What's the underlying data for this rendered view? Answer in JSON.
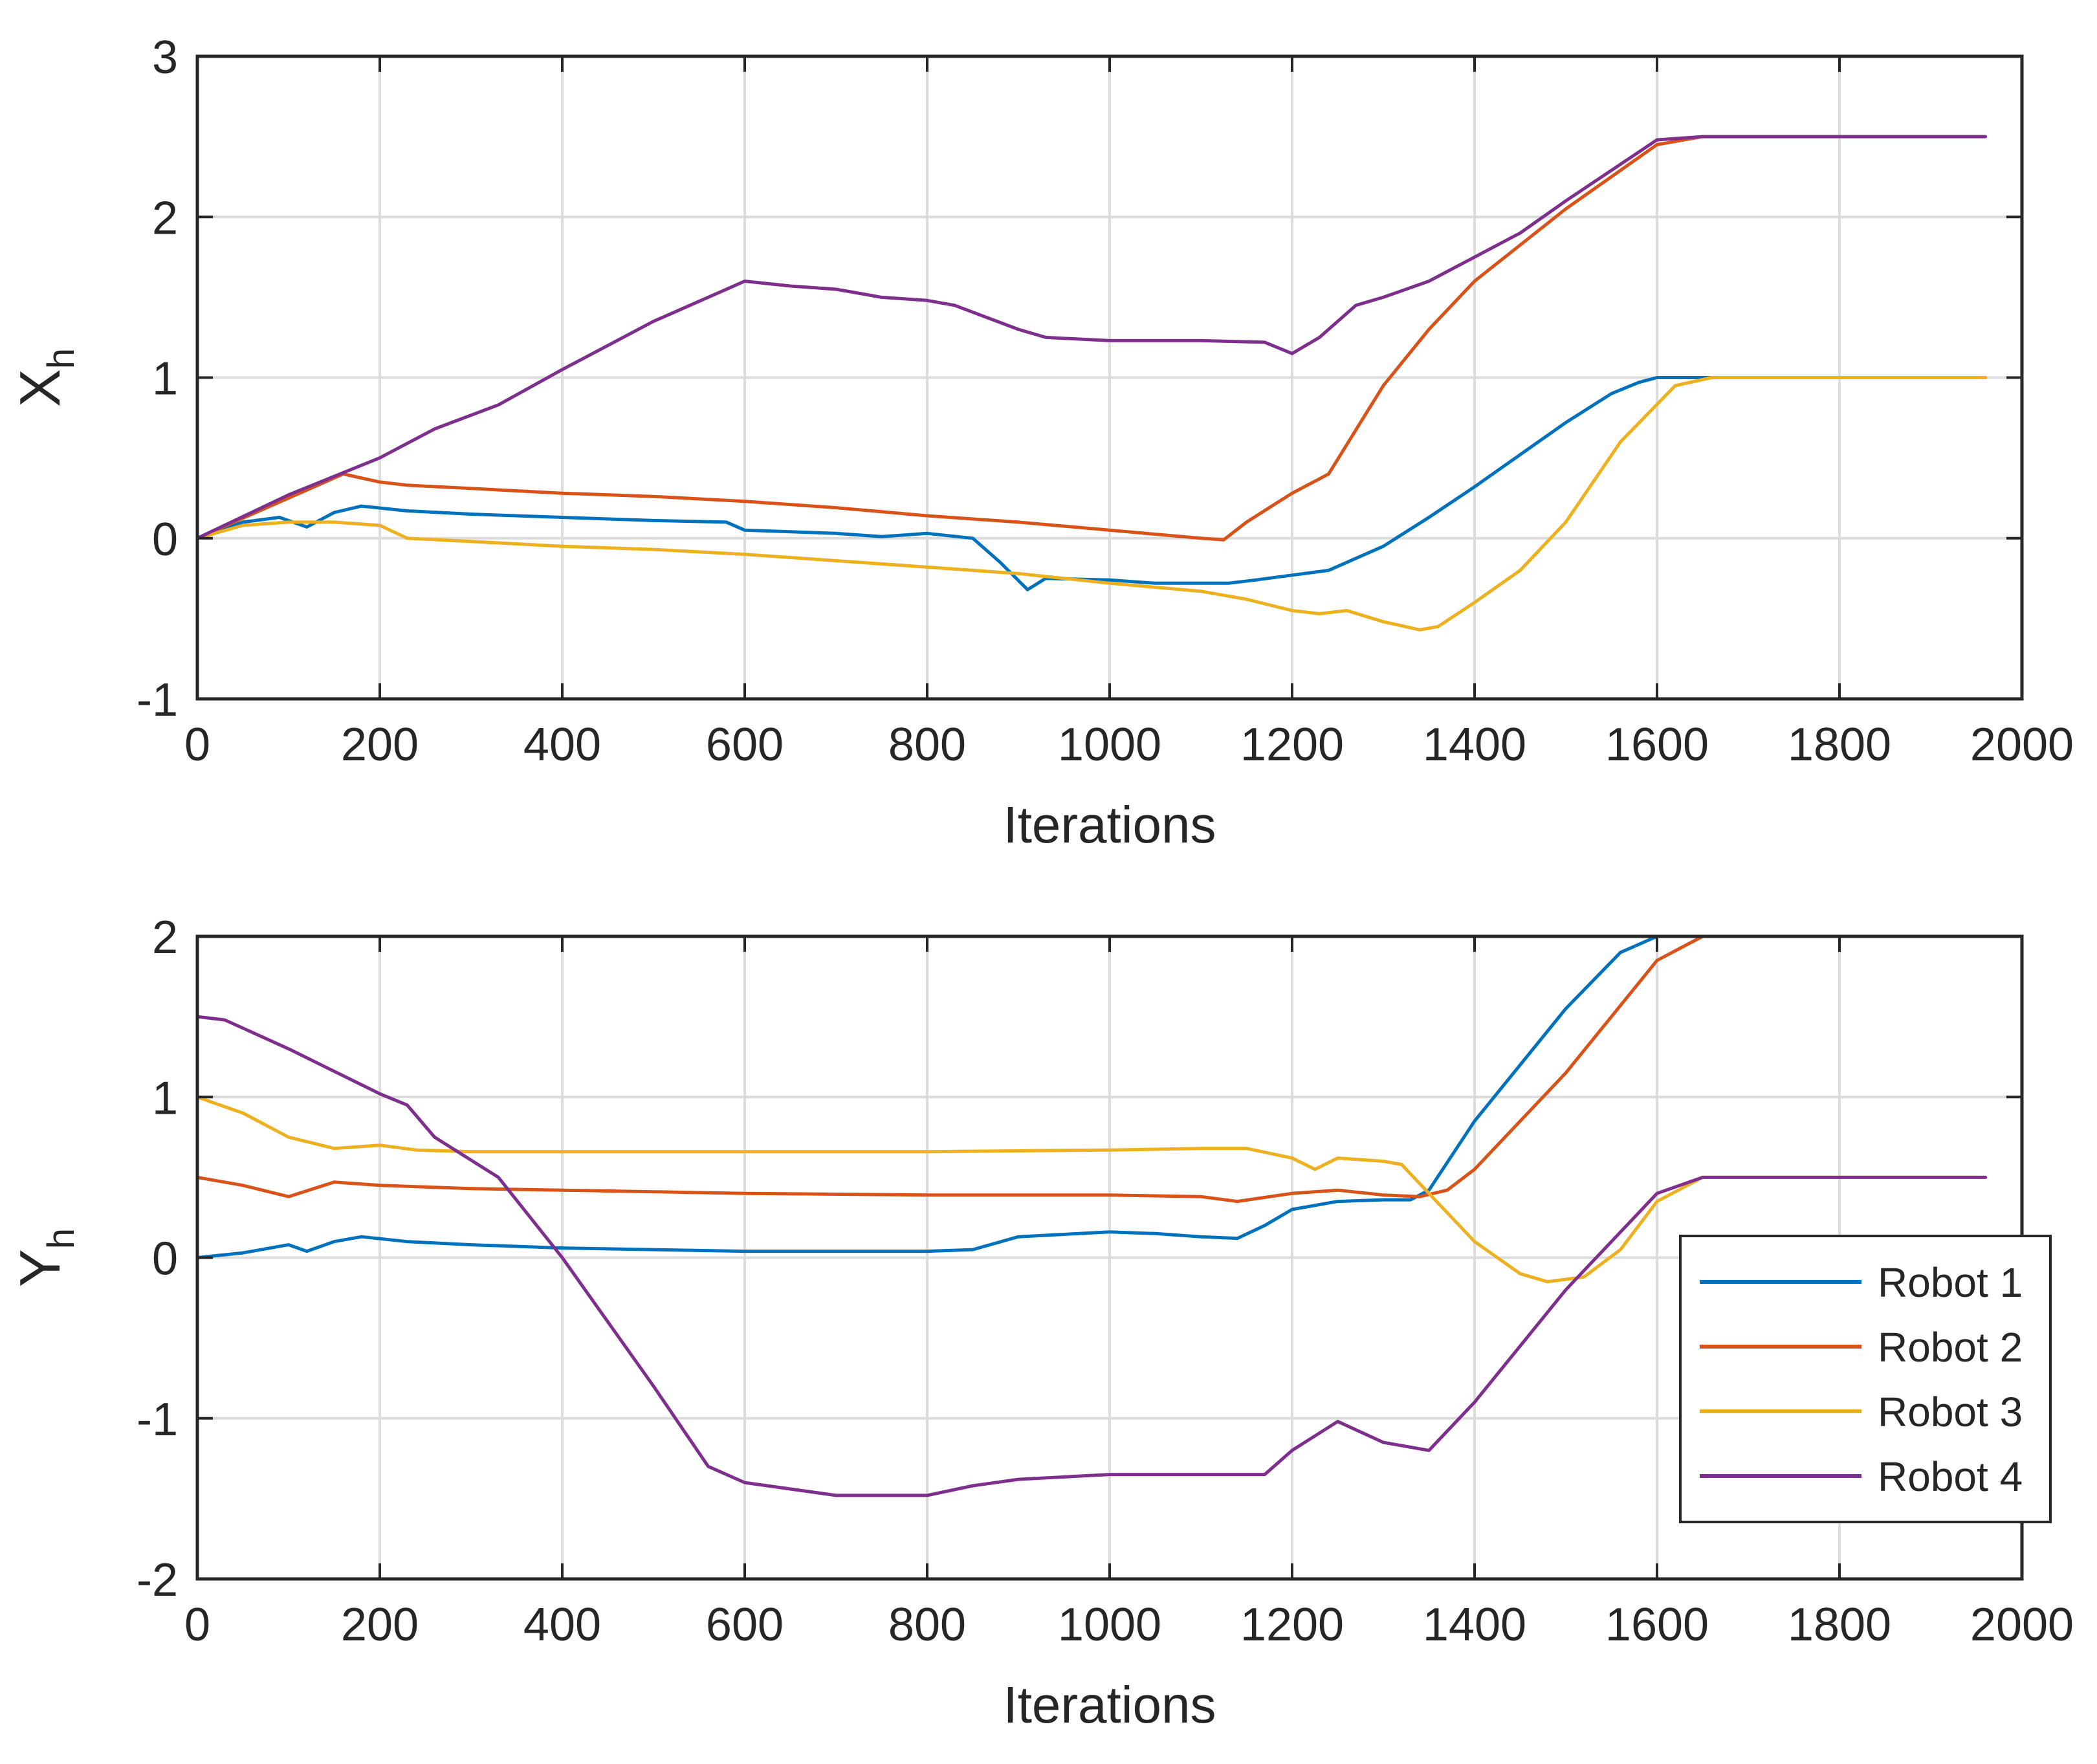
{
  "chart_data": [
    {
      "type": "line",
      "xlabel": "Iterations",
      "ylabel": "X",
      "ylabel_sub": "h",
      "xlim": [
        0,
        2000
      ],
      "ylim": [
        -1,
        3
      ],
      "xticks": [
        0,
        200,
        400,
        600,
        800,
        1000,
        1200,
        1400,
        1600,
        1800,
        2000
      ],
      "yticks": [
        -1,
        0,
        1,
        2,
        3
      ],
      "grid": true,
      "series": [
        {
          "name": "Robot 1",
          "color": "#0072BD",
          "x": [
            0,
            50,
            90,
            120,
            150,
            180,
            230,
            300,
            400,
            500,
            580,
            600,
            700,
            750,
            800,
            850,
            880,
            910,
            930,
            1000,
            1050,
            1100,
            1130,
            1160,
            1200,
            1240,
            1300,
            1350,
            1400,
            1500,
            1550,
            1580,
            1600,
            1650,
            1960
          ],
          "y": [
            0,
            0.1,
            0.13,
            0.07,
            0.16,
            0.2,
            0.17,
            0.15,
            0.13,
            0.11,
            0.1,
            0.05,
            0.03,
            0.01,
            0.03,
            0,
            -0.15,
            -0.32,
            -0.25,
            -0.26,
            -0.28,
            -0.28,
            -0.28,
            -0.26,
            -0.23,
            -0.2,
            -0.05,
            0.13,
            0.32,
            0.72,
            0.9,
            0.97,
            1,
            1,
            1
          ]
        },
        {
          "name": "Robot 2",
          "color": "#D95319",
          "x": [
            0,
            80,
            160,
            200,
            230,
            300,
            400,
            500,
            600,
            700,
            800,
            900,
            1000,
            1100,
            1125,
            1150,
            1200,
            1240,
            1300,
            1350,
            1400,
            1500,
            1600,
            1650,
            1960
          ],
          "y": [
            0,
            0.2,
            0.4,
            0.35,
            0.33,
            0.31,
            0.28,
            0.26,
            0.23,
            0.19,
            0.14,
            0.1,
            0.05,
            0,
            -0.01,
            0.1,
            0.28,
            0.4,
            0.95,
            1.3,
            1.6,
            2.05,
            2.45,
            2.5,
            2.5
          ]
        },
        {
          "name": "Robot 3",
          "color": "#EDB120",
          "x": [
            0,
            50,
            100,
            150,
            200,
            230,
            300,
            400,
            500,
            600,
            700,
            800,
            900,
            1000,
            1100,
            1150,
            1200,
            1230,
            1260,
            1300,
            1340,
            1360,
            1400,
            1450,
            1500,
            1560,
            1620,
            1660,
            1960
          ],
          "y": [
            0,
            0.08,
            0.1,
            0.1,
            0.08,
            0,
            -0.02,
            -0.05,
            -0.07,
            -0.1,
            -0.14,
            -0.18,
            -0.22,
            -0.28,
            -0.33,
            -0.38,
            -0.45,
            -0.47,
            -0.45,
            -0.52,
            -0.57,
            -0.55,
            -0.4,
            -0.2,
            0.1,
            0.6,
            0.95,
            1,
            1
          ]
        },
        {
          "name": "Robot 4",
          "color": "#7E2F8E",
          "x": [
            0,
            100,
            200,
            260,
            330,
            400,
            500,
            600,
            650,
            700,
            730,
            750,
            800,
            830,
            900,
            930,
            1000,
            1100,
            1170,
            1200,
            1230,
            1270,
            1300,
            1350,
            1400,
            1450,
            1500,
            1600,
            1650,
            1960
          ],
          "y": [
            0,
            0.27,
            0.5,
            0.68,
            0.83,
            1.05,
            1.35,
            1.6,
            1.57,
            1.55,
            1.52,
            1.5,
            1.48,
            1.45,
            1.3,
            1.25,
            1.23,
            1.23,
            1.22,
            1.15,
            1.25,
            1.45,
            1.5,
            1.6,
            1.75,
            1.9,
            2.1,
            2.48,
            2.5,
            2.5
          ]
        }
      ]
    },
    {
      "type": "line",
      "xlabel": "Iterations",
      "ylabel": "Y",
      "ylabel_sub": "h",
      "xlim": [
        0,
        2000
      ],
      "ylim": [
        -2,
        2
      ],
      "xticks": [
        0,
        200,
        400,
        600,
        800,
        1000,
        1200,
        1400,
        1600,
        1800,
        2000
      ],
      "yticks": [
        -2,
        -1,
        0,
        1,
        2
      ],
      "grid": true,
      "legend": {
        "position": "bottom-right",
        "entries": [
          "Robot 1",
          "Robot 2",
          "Robot 3",
          "Robot 4"
        ]
      },
      "series": [
        {
          "name": "Robot 1",
          "color": "#0072BD",
          "x": [
            0,
            50,
            100,
            120,
            150,
            180,
            230,
            300,
            400,
            500,
            600,
            700,
            800,
            850,
            900,
            1000,
            1050,
            1100,
            1140,
            1170,
            1200,
            1250,
            1300,
            1330,
            1350,
            1400,
            1500,
            1560,
            1600,
            1650,
            1960
          ],
          "y": [
            0,
            0.03,
            0.08,
            0.04,
            0.1,
            0.13,
            0.1,
            0.08,
            0.06,
            0.05,
            0.04,
            0.04,
            0.04,
            0.05,
            0.13,
            0.16,
            0.15,
            0.13,
            0.12,
            0.2,
            0.3,
            0.35,
            0.36,
            0.36,
            0.42,
            0.85,
            1.55,
            1.9,
            2,
            2,
            2
          ]
        },
        {
          "name": "Robot 2",
          "color": "#D95319",
          "x": [
            0,
            50,
            100,
            150,
            200,
            300,
            400,
            600,
            800,
            1000,
            1100,
            1140,
            1200,
            1250,
            1300,
            1340,
            1370,
            1400,
            1500,
            1600,
            1650,
            1960
          ],
          "y": [
            0.5,
            0.45,
            0.38,
            0.47,
            0.45,
            0.43,
            0.42,
            0.4,
            0.39,
            0.39,
            0.38,
            0.35,
            0.4,
            0.42,
            0.39,
            0.38,
            0.42,
            0.55,
            1.15,
            1.85,
            2,
            2
          ]
        },
        {
          "name": "Robot 3",
          "color": "#EDB120",
          "x": [
            0,
            50,
            100,
            150,
            200,
            240,
            300,
            400,
            600,
            800,
            1000,
            1100,
            1150,
            1200,
            1225,
            1250,
            1300,
            1320,
            1350,
            1400,
            1450,
            1480,
            1520,
            1560,
            1600,
            1650,
            1960
          ],
          "y": [
            1,
            0.9,
            0.75,
            0.68,
            0.7,
            0.67,
            0.66,
            0.66,
            0.66,
            0.66,
            0.67,
            0.68,
            0.68,
            0.62,
            0.55,
            0.62,
            0.6,
            0.58,
            0.4,
            0.1,
            -0.1,
            -0.15,
            -0.12,
            0.05,
            0.35,
            0.5,
            0.5
          ]
        },
        {
          "name": "Robot 4",
          "color": "#7E2F8E",
          "x": [
            0,
            30,
            100,
            200,
            230,
            260,
            330,
            400,
            500,
            560,
            600,
            700,
            800,
            850,
            900,
            1000,
            1100,
            1170,
            1200,
            1250,
            1300,
            1350,
            1400,
            1500,
            1600,
            1650,
            1960
          ],
          "y": [
            1.5,
            1.48,
            1.3,
            1.02,
            0.95,
            0.75,
            0.5,
            0,
            -0.8,
            -1.3,
            -1.4,
            -1.48,
            -1.48,
            -1.42,
            -1.38,
            -1.35,
            -1.35,
            -1.35,
            -1.2,
            -1.02,
            -1.15,
            -1.2,
            -0.9,
            -0.2,
            0.4,
            0.5,
            0.5
          ]
        }
      ]
    }
  ]
}
